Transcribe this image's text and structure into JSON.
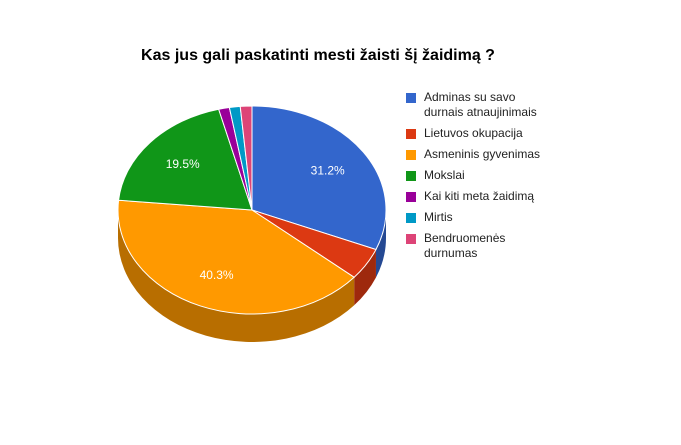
{
  "chart_data": {
    "type": "pie3d",
    "title": "Kas jus gali paskatinti mesti žaisti šį žaidimą ?",
    "categories": [
      "Adminas su savo durnais atnaujinimais",
      "Lietuvos okupacija",
      "Asmeninis gyvenimas",
      "Mokslai",
      "Kai kiti meta žaidimą",
      "Mirtis",
      "Bendruomenės durnumas"
    ],
    "values": [
      31.2,
      5.0,
      40.3,
      19.5,
      1.3,
      1.3,
      1.4
    ],
    "value_labels": [
      "31.2%",
      null,
      "40.3%",
      "19.5%",
      null,
      null,
      null
    ],
    "colors": [
      "#3366cc",
      "#dc3912",
      "#ff9900",
      "#109618",
      "#990099",
      "#0099c6",
      "#dd4477"
    ],
    "legend": "right"
  }
}
